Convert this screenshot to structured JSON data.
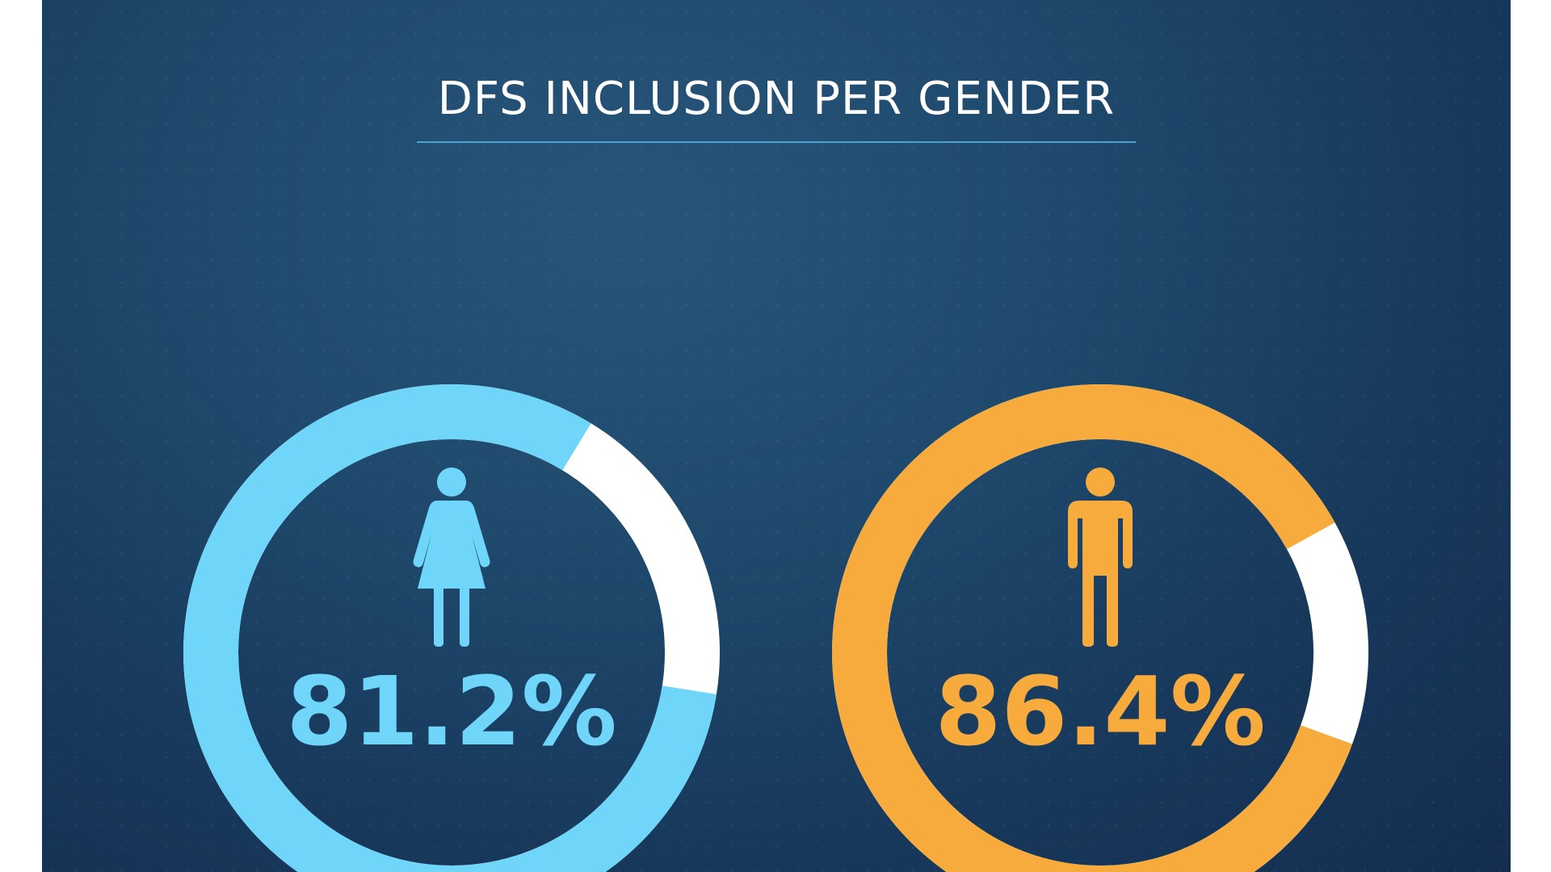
{
  "chart_data": {
    "type": "pie",
    "title": "DFS INCLUSION PER GENDER",
    "series": [
      {
        "icon": "female-icon",
        "value": 81.2,
        "label": "81.2%",
        "color": "#6fd5f9"
      },
      {
        "icon": "male-icon",
        "value": 86.4,
        "label": "86.4%",
        "color": "#f6ab3c"
      }
    ],
    "remainder_color": "#ffffff",
    "background_color": "#1d4267"
  }
}
